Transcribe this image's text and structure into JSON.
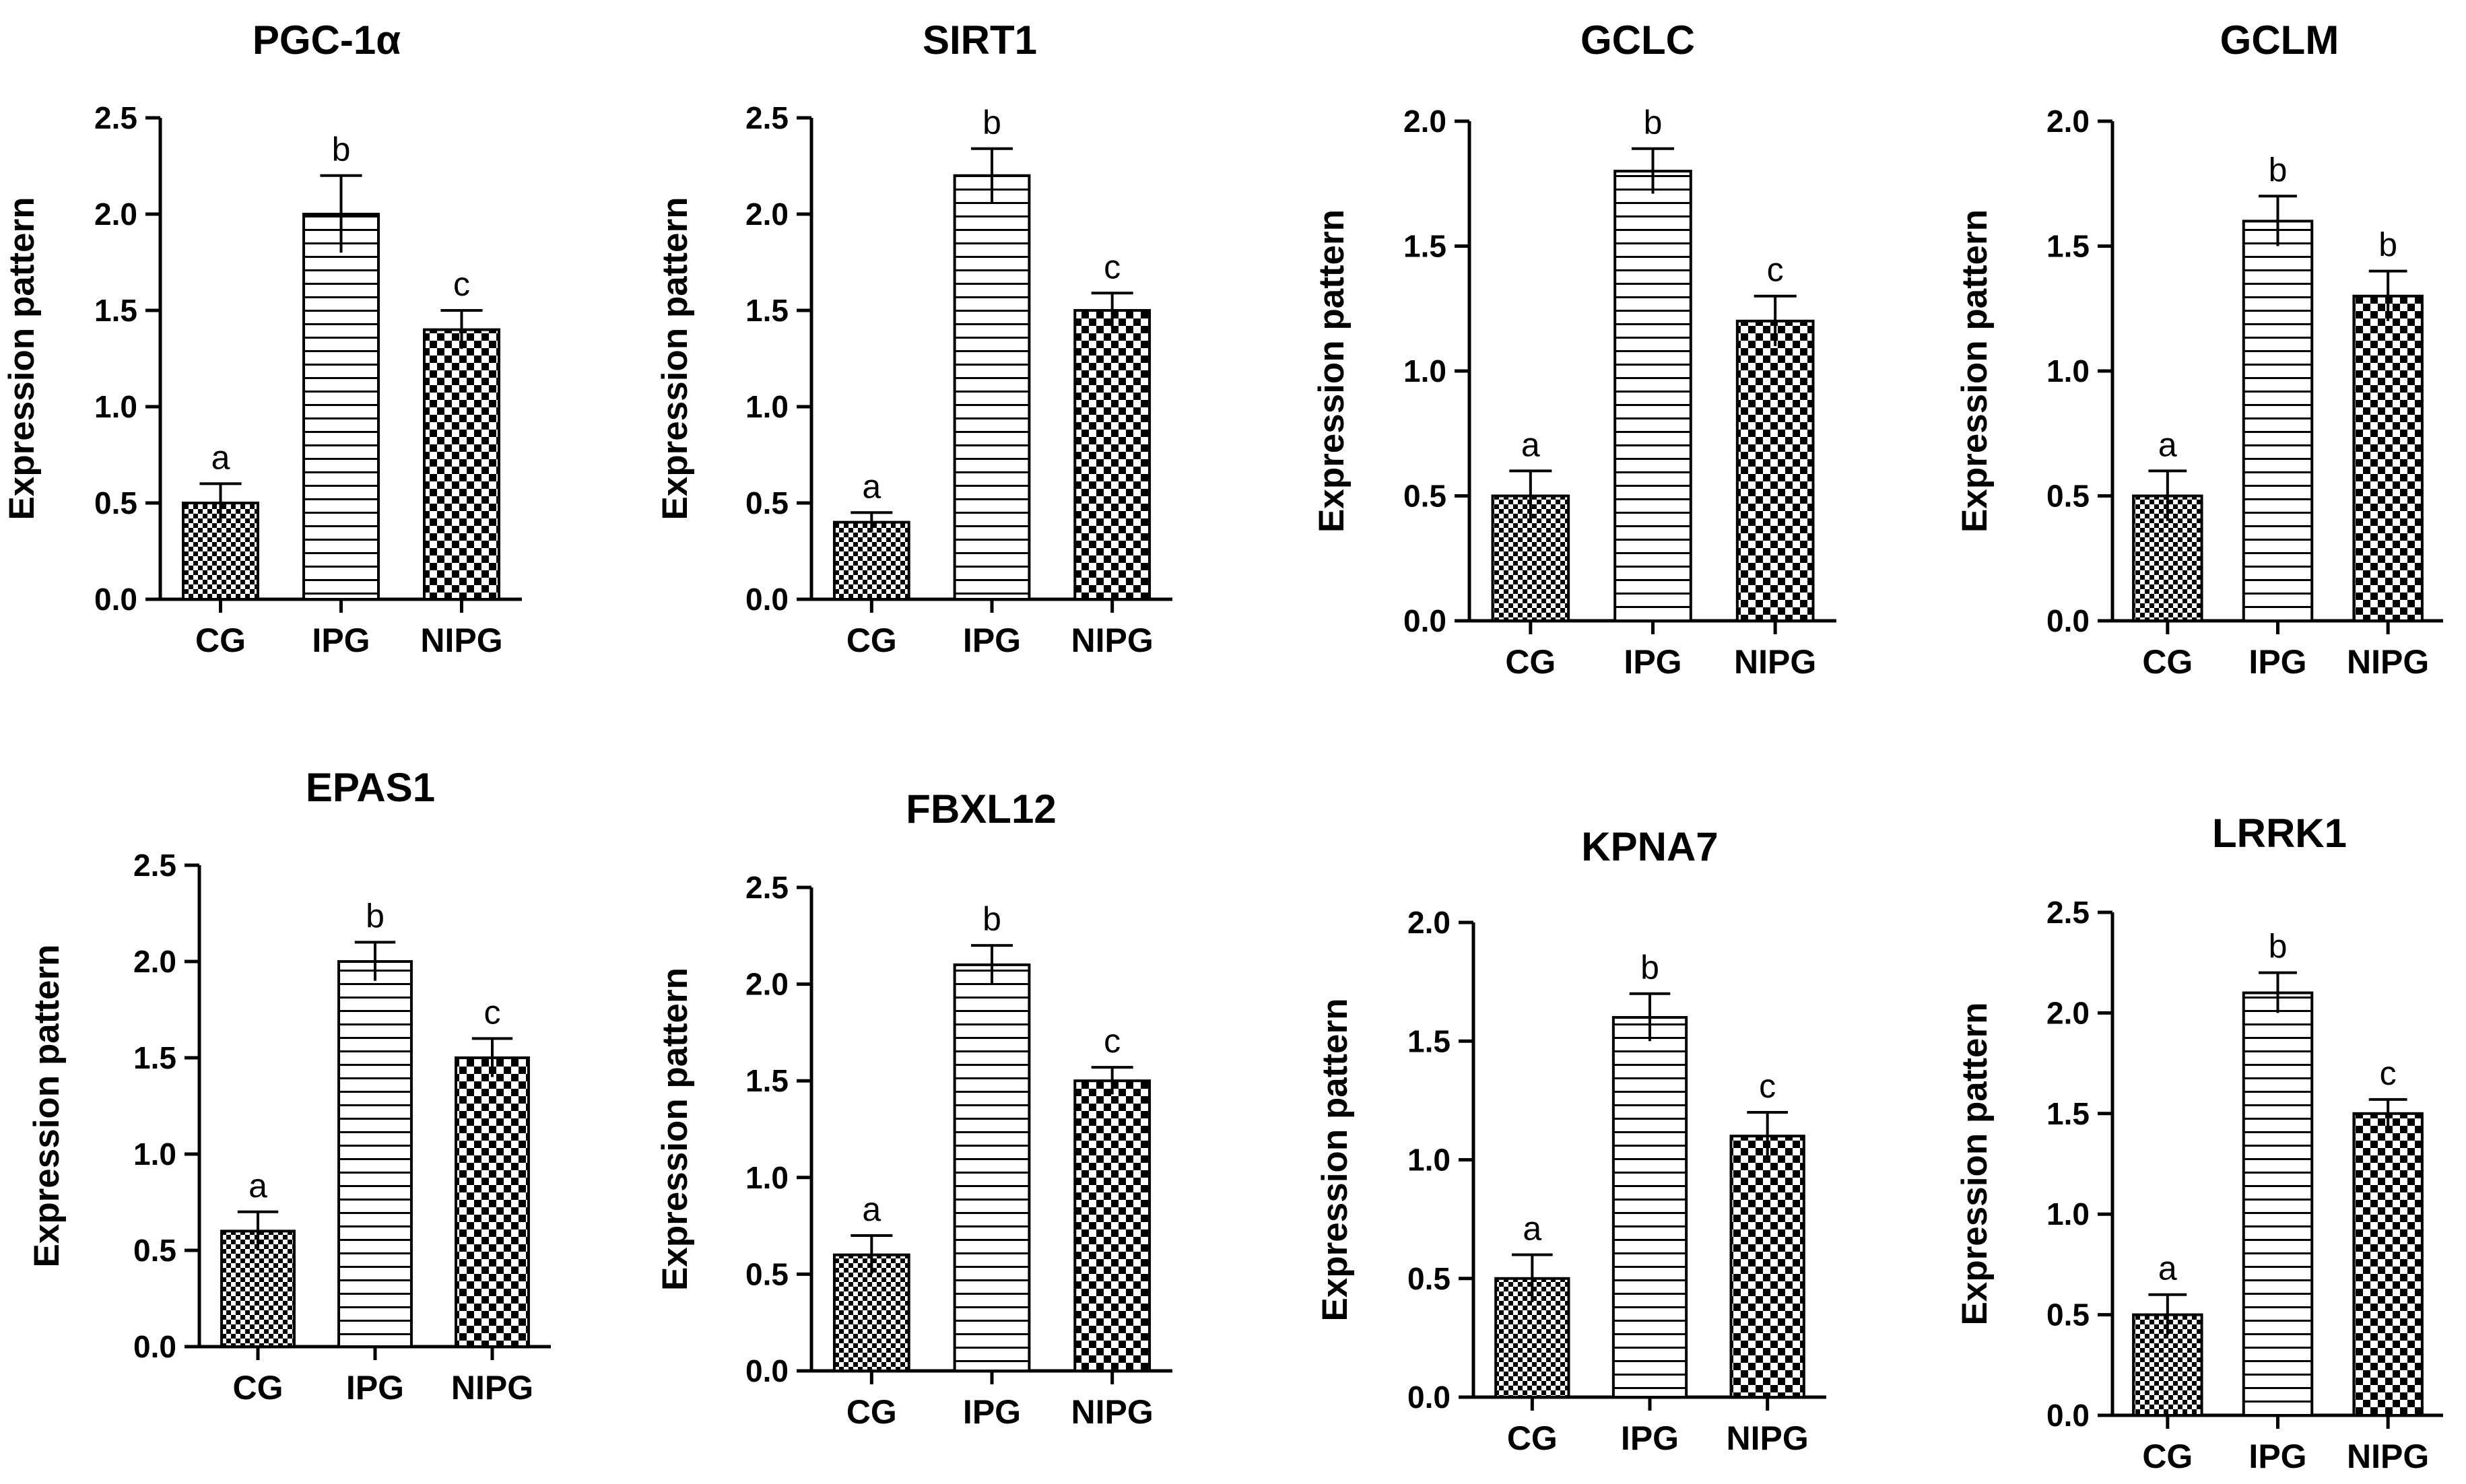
{
  "chart_data": [
    {
      "type": "bar",
      "title": "PGC-1α",
      "ylabel": "Expression pattern",
      "xlabel": "",
      "categories": [
        "CG",
        "IPG",
        "NIPG"
      ],
      "values": [
        0.5,
        2.0,
        1.4
      ],
      "errors": [
        0.1,
        0.2,
        0.1
      ],
      "letters": [
        "a",
        "b",
        "c"
      ],
      "ylim": [
        0,
        2.5
      ],
      "yticks": [
        "0.0",
        "0.5",
        "1.0",
        "1.5",
        "2.0",
        "2.5"
      ]
    },
    {
      "type": "bar",
      "title": "SIRT1",
      "ylabel": "Expression pattern",
      "xlabel": "",
      "categories": [
        "CG",
        "IPG",
        "NIPG"
      ],
      "values": [
        0.4,
        2.2,
        1.5
      ],
      "errors": [
        0.05,
        0.14,
        0.09
      ],
      "letters": [
        "a",
        "b",
        "c"
      ],
      "ylim": [
        0,
        2.5
      ],
      "yticks": [
        "0.0",
        "0.5",
        "1.0",
        "1.5",
        "2.0",
        "2.5"
      ]
    },
    {
      "type": "bar",
      "title": "GCLC",
      "ylabel": "Expression pattern",
      "xlabel": "",
      "categories": [
        "CG",
        "IPG",
        "NIPG"
      ],
      "values": [
        0.5,
        1.8,
        1.2
      ],
      "errors": [
        0.1,
        0.09,
        0.1
      ],
      "letters": [
        "a",
        "b",
        "c"
      ],
      "ylim": [
        0,
        2.0
      ],
      "yticks": [
        "0.0",
        "0.5",
        "1.0",
        "1.5",
        "2.0"
      ]
    },
    {
      "type": "bar",
      "title": "GCLM",
      "ylabel": "Expression pattern",
      "xlabel": "",
      "categories": [
        "CG",
        "IPG",
        "NIPG"
      ],
      "values": [
        0.5,
        1.6,
        1.3
      ],
      "errors": [
        0.1,
        0.1,
        0.1
      ],
      "letters": [
        "a",
        "b",
        "b"
      ],
      "ylim": [
        0,
        2.0
      ],
      "yticks": [
        "0.0",
        "0.5",
        "1.0",
        "1.5",
        "2.0"
      ]
    },
    {
      "type": "bar",
      "title": "EPAS1",
      "ylabel": "Expression pattern",
      "xlabel": "",
      "categories": [
        "CG",
        "IPG",
        "NIPG"
      ],
      "values": [
        0.6,
        2.0,
        1.5
      ],
      "errors": [
        0.1,
        0.1,
        0.1
      ],
      "letters": [
        "a",
        "b",
        "c"
      ],
      "ylim": [
        0,
        2.5
      ],
      "yticks": [
        "0.0",
        "0.5",
        "1.0",
        "1.5",
        "2.0",
        "2.5"
      ]
    },
    {
      "type": "bar",
      "title": "FBXL12",
      "ylabel": "Expression pattern",
      "xlabel": "",
      "categories": [
        "CG",
        "IPG",
        "NIPG"
      ],
      "values": [
        0.6,
        2.1,
        1.5
      ],
      "errors": [
        0.1,
        0.1,
        0.07
      ],
      "letters": [
        "a",
        "b",
        "c"
      ],
      "ylim": [
        0,
        2.5
      ],
      "yticks": [
        "0.0",
        "0.5",
        "1.0",
        "1.5",
        "2.0",
        "2.5"
      ]
    },
    {
      "type": "bar",
      "title": "KPNA7",
      "ylabel": "Expression pattern",
      "xlabel": "",
      "categories": [
        "CG",
        "IPG",
        "NIPG"
      ],
      "values": [
        0.5,
        1.6,
        1.1
      ],
      "errors": [
        0.1,
        0.1,
        0.1
      ],
      "letters": [
        "a",
        "b",
        "c"
      ],
      "ylim": [
        0,
        2.0
      ],
      "yticks": [
        "0.0",
        "0.5",
        "1.0",
        "1.5",
        "2.0"
      ]
    },
    {
      "type": "bar",
      "title": "LRRK1",
      "ylabel": "Expression pattern",
      "xlabel": "",
      "categories": [
        "CG",
        "IPG",
        "NIPG"
      ],
      "values": [
        0.5,
        2.1,
        1.5
      ],
      "errors": [
        0.1,
        0.1,
        0.07
      ],
      "letters": [
        "a",
        "b",
        "c"
      ],
      "ylim": [
        0,
        2.5
      ],
      "yticks": [
        "0.0",
        "0.5",
        "1.0",
        "1.5",
        "2.0",
        "2.5"
      ]
    }
  ],
  "colors": {
    "bar_fill": "#ffffff",
    "bar_stroke": "#000000",
    "axis": "#000000",
    "text": "#000000",
    "pattern_ink": "#000000"
  },
  "patterns": [
    "fine-checker",
    "horizontal-stripes",
    "coarse-checker"
  ]
}
